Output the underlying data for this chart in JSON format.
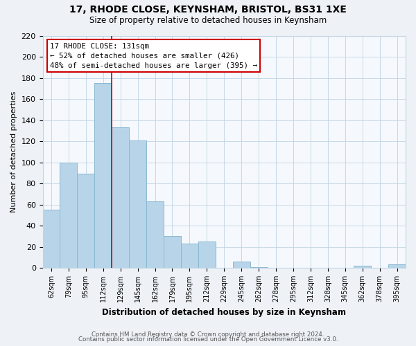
{
  "title": "17, RHODE CLOSE, KEYNSHAM, BRISTOL, BS31 1XE",
  "subtitle": "Size of property relative to detached houses in Keynsham",
  "xlabel": "Distribution of detached houses by size in Keynsham",
  "ylabel": "Number of detached properties",
  "categories": [
    "62sqm",
    "79sqm",
    "95sqm",
    "112sqm",
    "129sqm",
    "145sqm",
    "162sqm",
    "179sqm",
    "195sqm",
    "212sqm",
    "229sqm",
    "245sqm",
    "262sqm",
    "278sqm",
    "295sqm",
    "312sqm",
    "328sqm",
    "345sqm",
    "362sqm",
    "378sqm",
    "395sqm"
  ],
  "values": [
    55,
    100,
    89,
    175,
    133,
    121,
    63,
    30,
    23,
    25,
    0,
    6,
    1,
    0,
    0,
    0,
    0,
    0,
    2,
    0,
    3
  ],
  "bar_color": "#b8d4e8",
  "bar_edge_color": "#8ab8d0",
  "property_line_x": 3.5,
  "property_line_color": "#cc0000",
  "annotation_title": "17 RHODE CLOSE: 131sqm",
  "annotation_line1": "← 52% of detached houses are smaller (426)",
  "annotation_line2": "48% of semi-detached houses are larger (395) →",
  "annotation_box_color": "#ffffff",
  "annotation_box_edge_color": "#cc0000",
  "ylim": [
    0,
    220
  ],
  "yticks": [
    0,
    20,
    40,
    60,
    80,
    100,
    120,
    140,
    160,
    180,
    200,
    220
  ],
  "footer1": "Contains HM Land Registry data © Crown copyright and database right 2024.",
  "footer2": "Contains public sector information licensed under the Open Government Licence v3.0.",
  "bg_color": "#eef2f7",
  "plot_bg_color": "#f5f8fc",
  "grid_color": "#c0d4e4"
}
